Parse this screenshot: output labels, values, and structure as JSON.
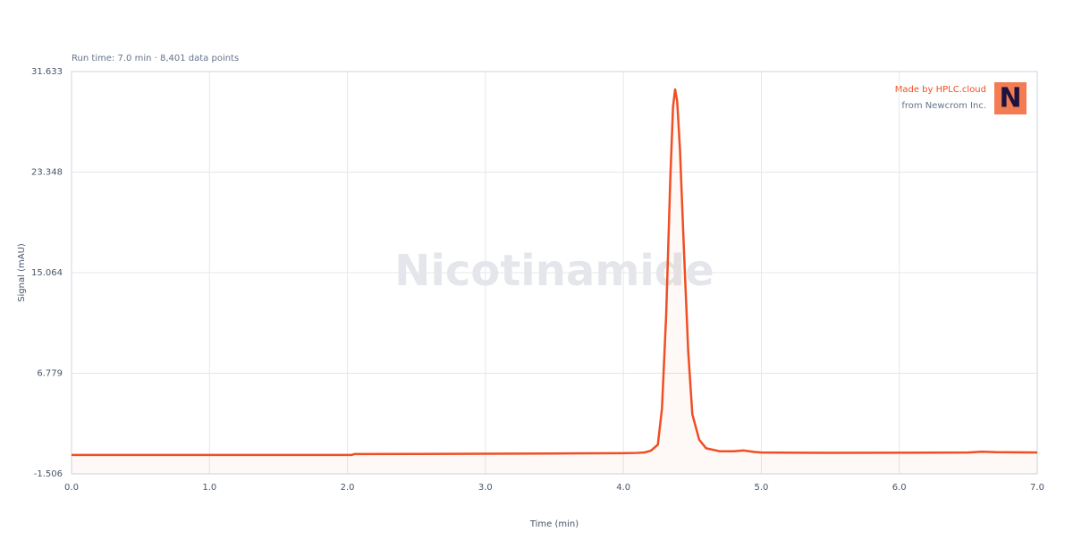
{
  "chart_data": {
    "type": "line",
    "subtitle": "Run time: 7.0 min · 8,401 data points",
    "watermark": "Nicotinamide",
    "credit": "Made by HPLC.cloud",
    "credit_sub": "from Newcrom Inc.",
    "logo": "N",
    "x_label": "Time (min)",
    "y_label": "Signal (mAU)",
    "xlim": [
      0,
      7
    ],
    "ylim": [
      -1.506,
      31.633
    ],
    "xticks": [
      {
        "value": 0,
        "label": "0.0"
      },
      {
        "value": 1,
        "label": "1.0"
      },
      {
        "value": 2,
        "label": "2.0"
      },
      {
        "value": 3,
        "label": "3.0"
      },
      {
        "value": 4,
        "label": "4.0"
      },
      {
        "value": 5,
        "label": "5.0"
      },
      {
        "value": 6,
        "label": "6.0"
      },
      {
        "value": 7,
        "label": "7.0"
      }
    ],
    "yticks": [
      -1.506,
      6.779,
      15.064,
      23.348,
      31.633
    ],
    "grid": true,
    "series": [
      {
        "color": "#f04e23",
        "x": [
          0,
          1,
          2,
          2.03,
          2.05,
          2.5,
          3,
          3.5,
          4,
          4.1,
          4.15,
          4.2,
          4.25,
          4.28,
          4.31,
          4.34,
          4.36,
          4.375,
          4.39,
          4.41,
          4.44,
          4.47,
          4.5,
          4.55,
          4.6,
          4.7,
          4.8,
          4.87,
          4.95,
          5,
          5.5,
          6,
          6.5,
          6.6,
          6.7,
          7
        ],
        "values": [
          0.05,
          0.05,
          0.05,
          0.05,
          0.12,
          0.13,
          0.15,
          0.17,
          0.2,
          0.22,
          0.25,
          0.4,
          0.9,
          3.9,
          11.5,
          22.7,
          28.7,
          30.16,
          29.2,
          25.3,
          16.7,
          8.6,
          3.4,
          1.3,
          0.6,
          0.35,
          0.35,
          0.42,
          0.3,
          0.25,
          0.22,
          0.23,
          0.25,
          0.32,
          0.28,
          0.25
        ]
      }
    ]
  }
}
